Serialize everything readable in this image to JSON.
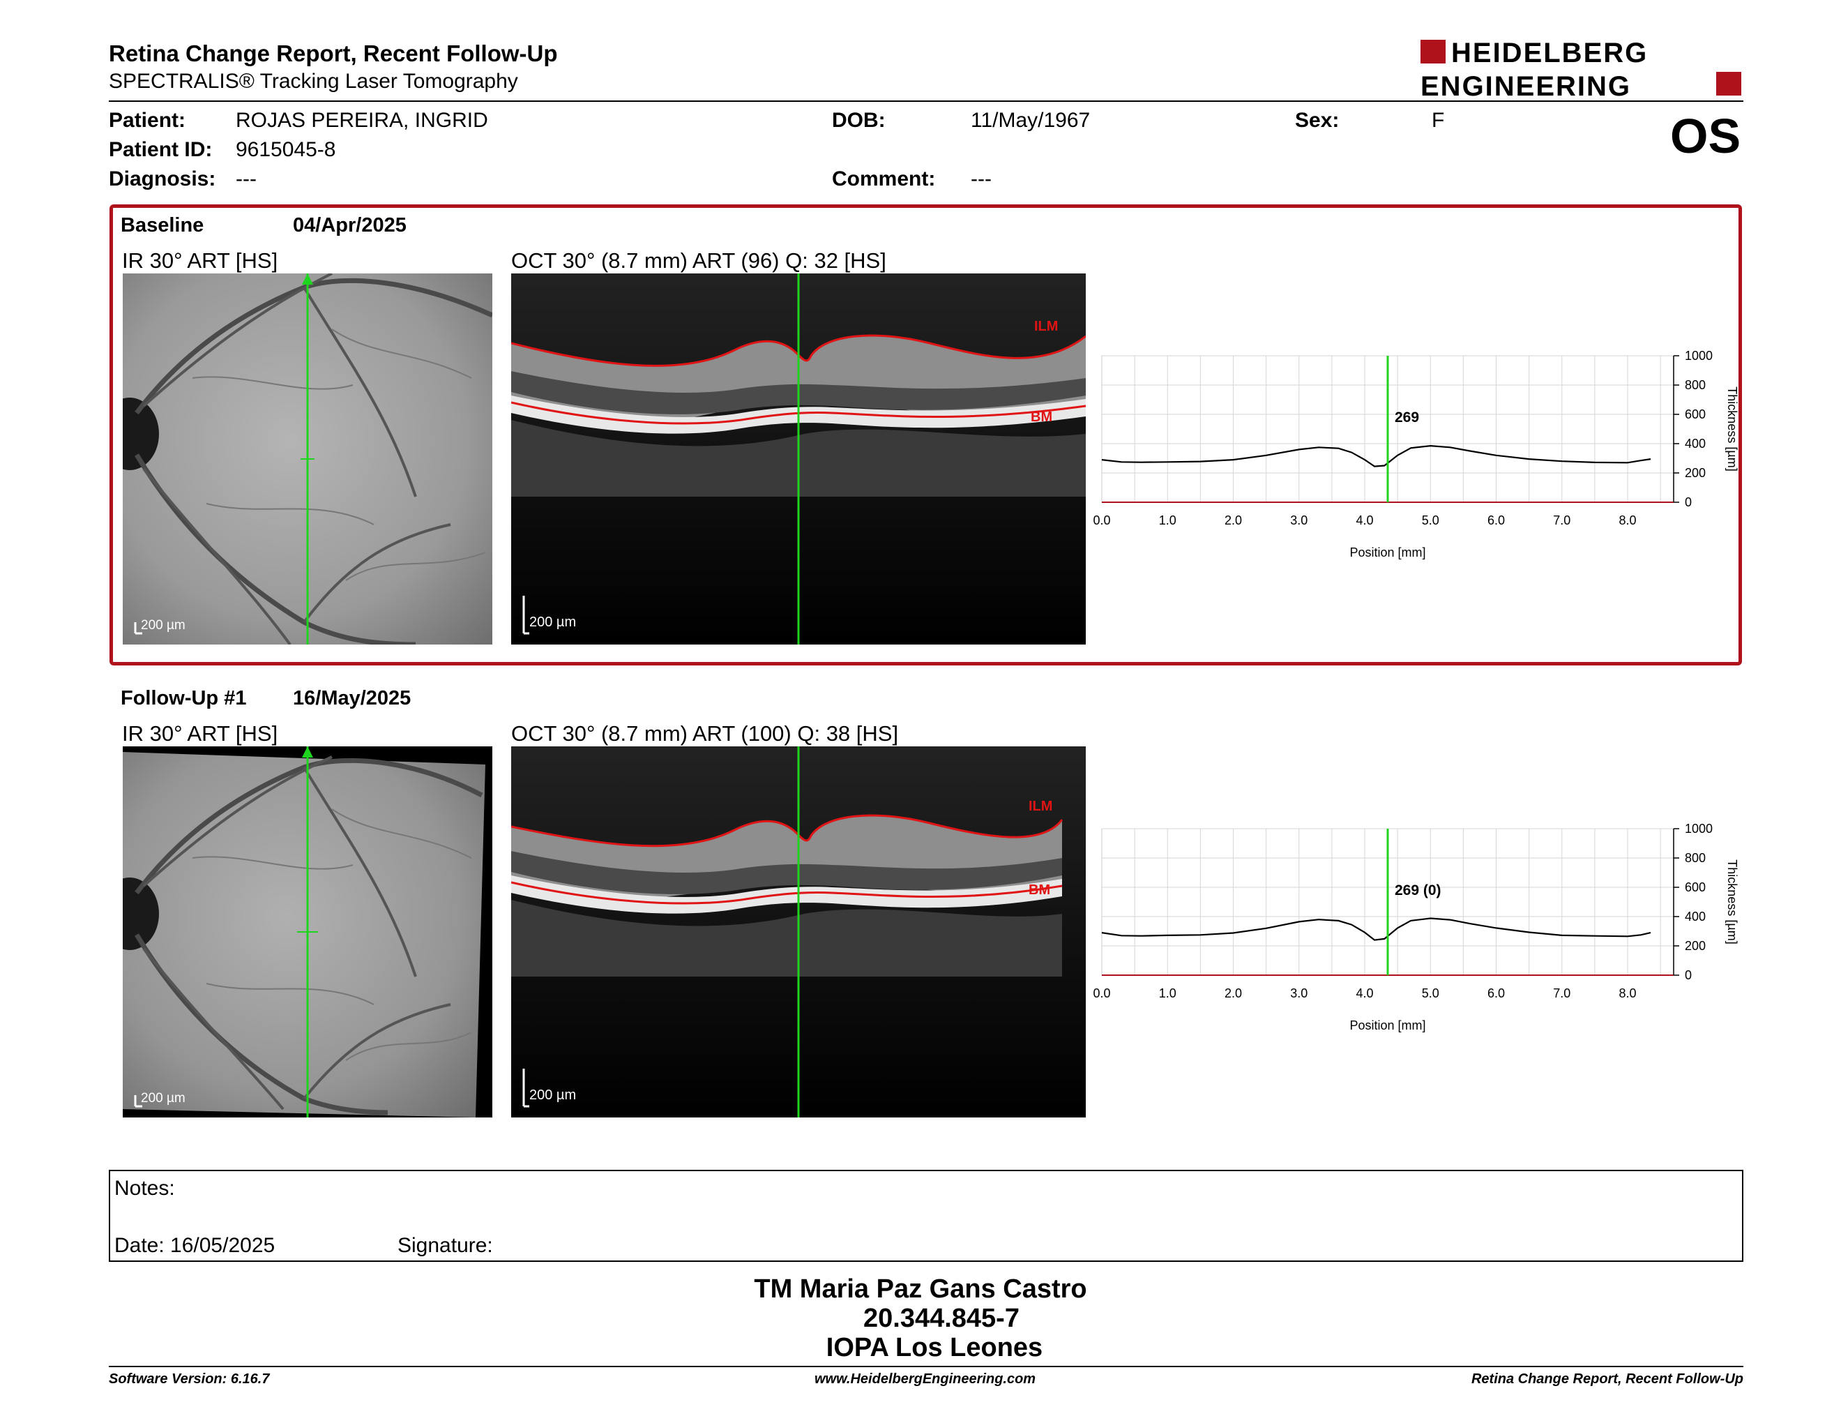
{
  "header": {
    "title": "Retina Change Report, Recent Follow-Up",
    "subtitle": "SPECTRALIS® Tracking Laser Tomography",
    "logo_line1": "HEIDELBERG",
    "logo_line2": "ENGINEERING",
    "eye": "OS"
  },
  "patient": {
    "patient_label": "Patient:",
    "patient_value": "ROJAS PEREIRA, INGRID",
    "id_label": "Patient ID:",
    "id_value": "9615045-8",
    "diagnosis_label": "Diagnosis:",
    "diagnosis_value": "---",
    "dob_label": "DOB:",
    "dob_value": "11/May/1967",
    "comment_label": "Comment:",
    "comment_value": "---",
    "sex_label": "Sex:",
    "sex_value": "F"
  },
  "baseline": {
    "name": "Baseline",
    "date": "04/Apr/2025",
    "ir_caption": "IR 30° ART [HS]",
    "oct_caption": "OCT 30° (8.7 mm) ART (96) Q: 32 [HS]",
    "ir_scale": "200 µm",
    "oct_scale": "200 µm",
    "ilm_label": "ILM",
    "bm_label": "BM",
    "thickness_value": "269"
  },
  "followup": {
    "name": "Follow-Up #1",
    "date": "16/May/2025",
    "ir_caption": "IR 30° ART [HS]",
    "oct_caption": "OCT 30° (8.7 mm) ART (100) Q: 38 [HS]",
    "ir_scale": "200 µm",
    "oct_scale": "200 µm",
    "ilm_label": "ILM",
    "bm_label": "BM",
    "thickness_value": "269 (0)"
  },
  "chart_data": [
    {
      "type": "line",
      "xlabel": "Position [mm]",
      "ylabel": "Thickness [µm]",
      "xlim": [
        0,
        8.7
      ],
      "ylim": [
        0,
        1000
      ],
      "x_ticks": [
        "0.0",
        "1.0",
        "2.0",
        "3.0",
        "4.0",
        "5.0",
        "6.0",
        "7.0",
        "8.0"
      ],
      "y_ticks": [
        "0",
        "200",
        "400",
        "600",
        "800",
        "1000"
      ],
      "cursor_x": 4.35,
      "cursor_label": "269",
      "grid": true,
      "series": [
        {
          "x": [
            0.0,
            0.3,
            0.6,
            1.0,
            1.5,
            2.0,
            2.5,
            3.0,
            3.3,
            3.6,
            3.8,
            4.0,
            4.15,
            4.3,
            4.5,
            4.7,
            5.0,
            5.3,
            5.6,
            6.0,
            6.5,
            7.0,
            7.5,
            8.0,
            8.2,
            8.35
          ],
          "y": [
            290,
            275,
            273,
            275,
            278,
            290,
            320,
            360,
            375,
            368,
            340,
            290,
            245,
            250,
            320,
            370,
            385,
            375,
            350,
            320,
            295,
            280,
            272,
            270,
            285,
            295
          ]
        }
      ]
    },
    {
      "type": "line",
      "xlabel": "Position [mm]",
      "ylabel": "Thickness [µm]",
      "xlim": [
        0,
        8.7
      ],
      "ylim": [
        0,
        1000
      ],
      "x_ticks": [
        "0.0",
        "1.0",
        "2.0",
        "3.0",
        "4.0",
        "5.0",
        "6.0",
        "7.0",
        "8.0"
      ],
      "y_ticks": [
        "0",
        "200",
        "400",
        "600",
        "800",
        "1000"
      ],
      "cursor_x": 4.35,
      "cursor_label": "269 (0)",
      "grid": true,
      "series": [
        {
          "x": [
            0.0,
            0.3,
            0.6,
            1.0,
            1.5,
            2.0,
            2.5,
            3.0,
            3.3,
            3.6,
            3.8,
            4.0,
            4.15,
            4.3,
            4.5,
            4.7,
            5.0,
            5.3,
            5.6,
            6.0,
            6.5,
            7.0,
            7.5,
            8.0,
            8.2,
            8.35
          ],
          "y": [
            290,
            270,
            268,
            272,
            275,
            288,
            320,
            365,
            380,
            372,
            345,
            292,
            240,
            248,
            322,
            372,
            388,
            378,
            352,
            322,
            293,
            272,
            268,
            265,
            275,
            290
          ]
        }
      ]
    }
  ],
  "notes": {
    "notes_label": "Notes:",
    "date_label": "Date: 16/05/2025",
    "signature_label": "Signature:"
  },
  "signoff": {
    "name": "TM Maria Paz Gans Castro",
    "id": "20.344.845-7",
    "place": "IOPA Los Leones"
  },
  "footer": {
    "software": "Software Version: 6.16.7",
    "website": "www.HeidelbergEngineering.com",
    "report": "Retina Change Report, Recent Follow-Up"
  },
  "colors": {
    "brand_red": "#b0121b",
    "cursor_green": "#1fd41f",
    "layer_red": "#e01414"
  }
}
